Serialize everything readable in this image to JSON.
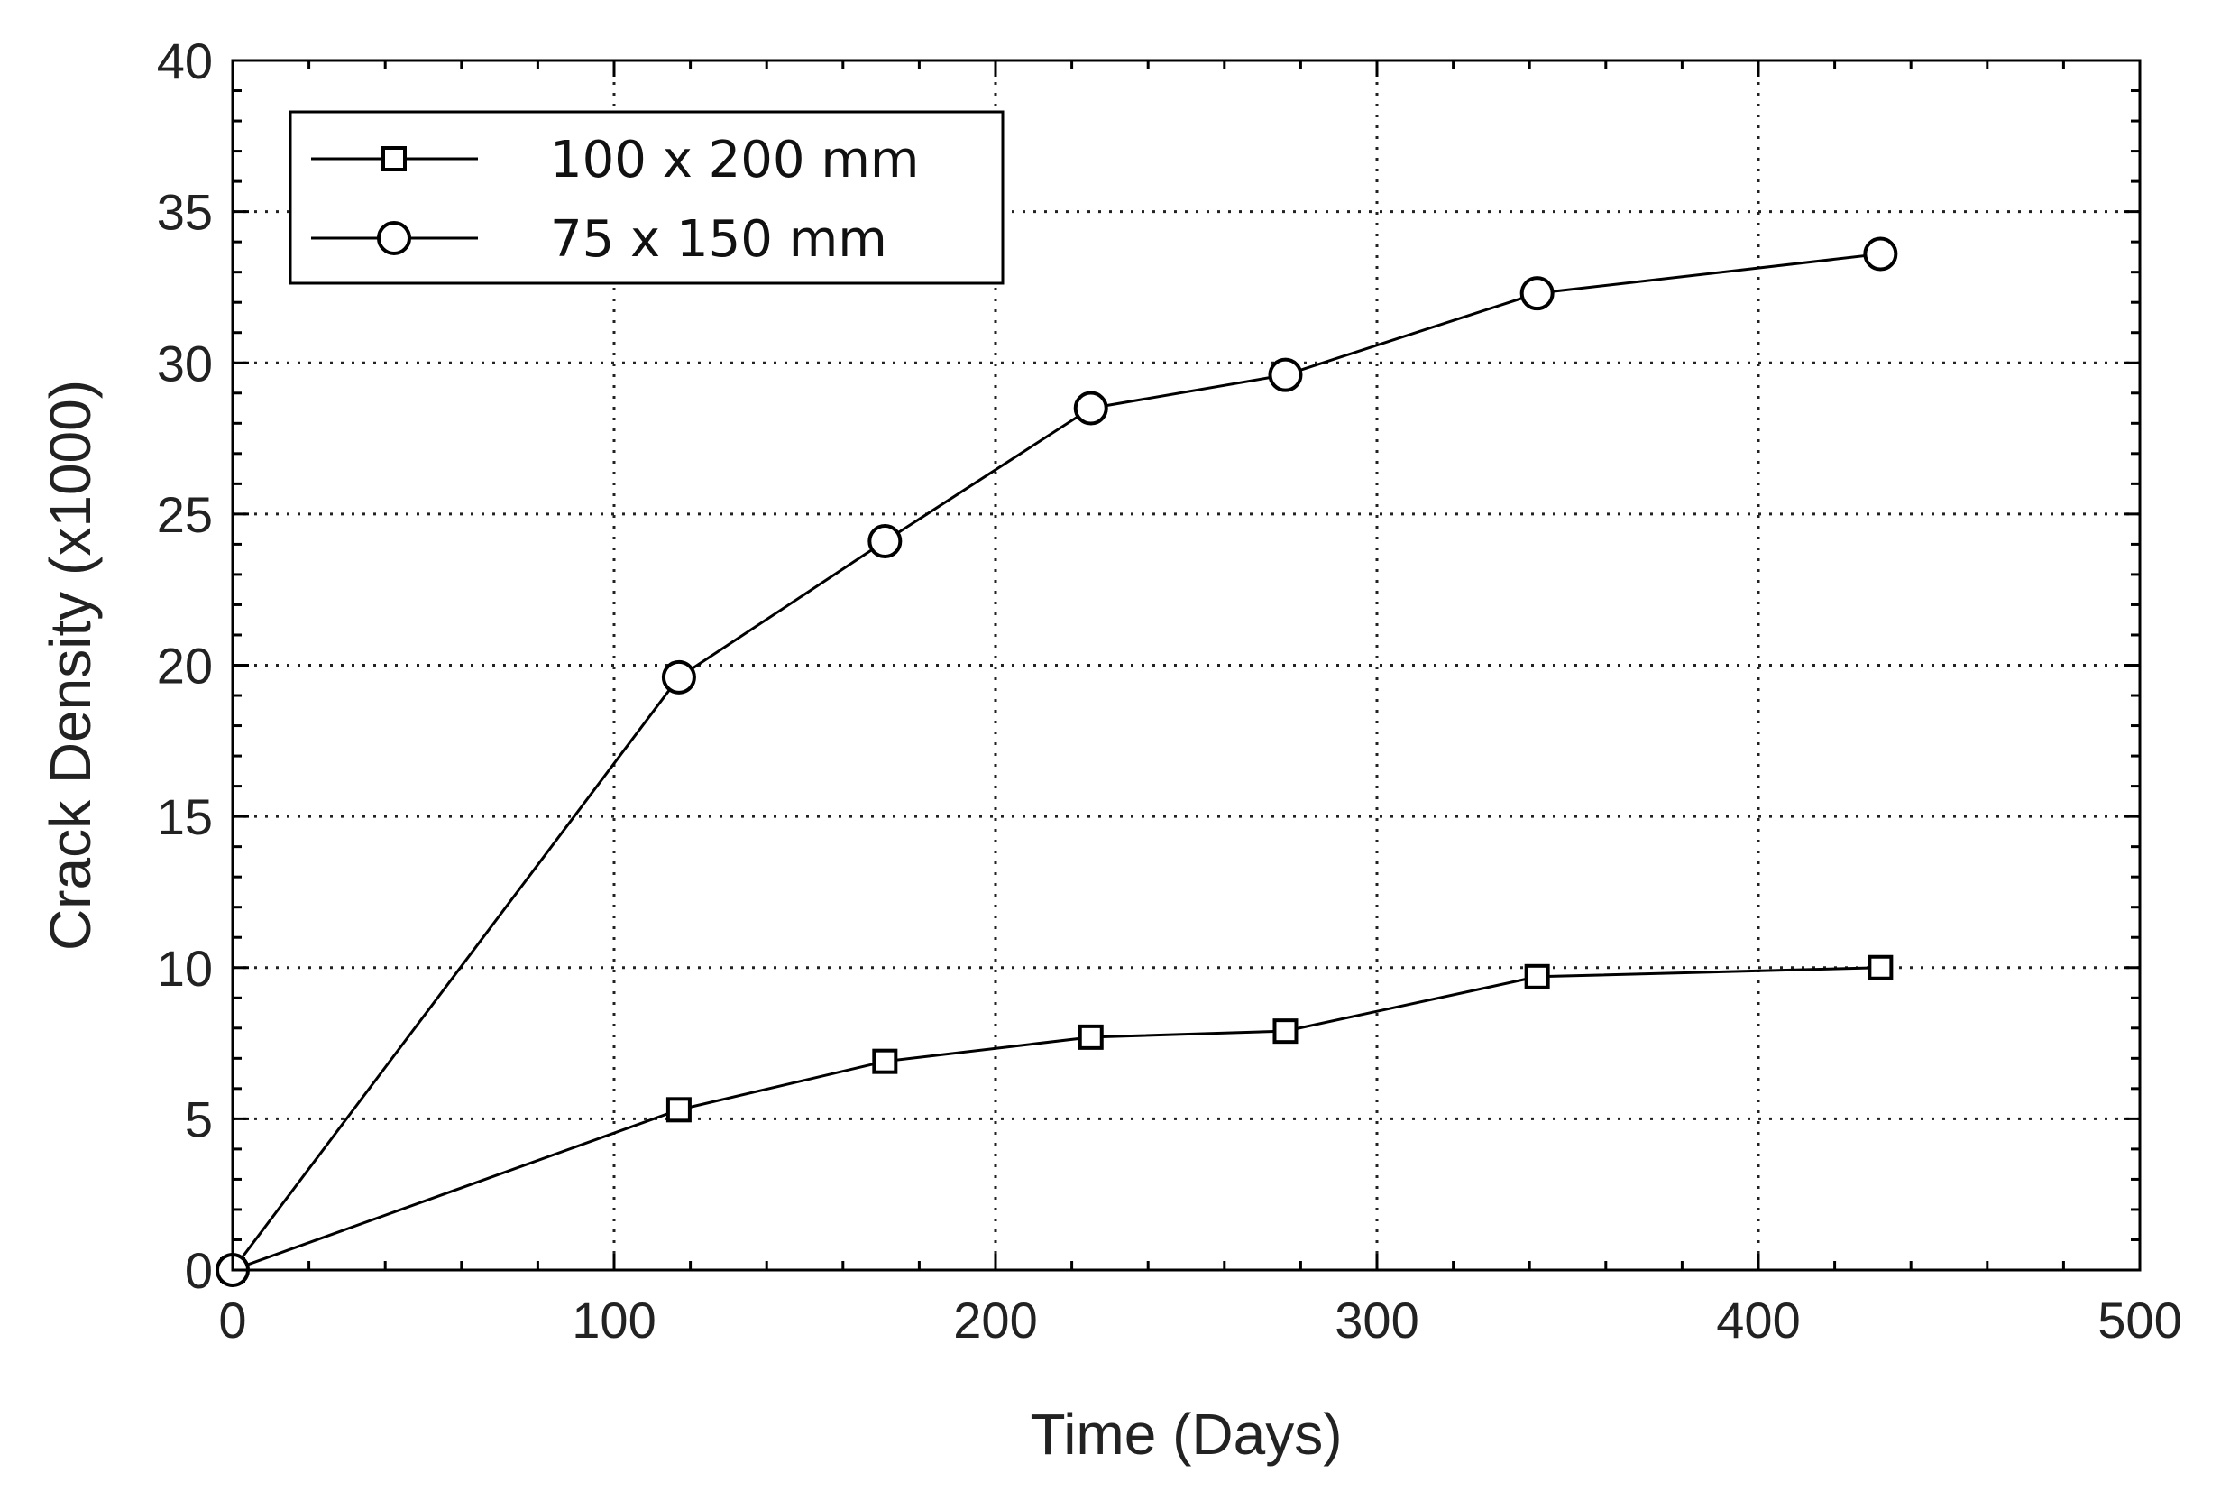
{
  "chart_data": {
    "type": "line",
    "xlabel": "Time (Days)",
    "ylabel": "Crack Density (x1000)",
    "xlim": [
      0,
      500
    ],
    "ylim": [
      0,
      40
    ],
    "xticks": [
      0,
      100,
      200,
      300,
      400,
      500
    ],
    "yticks": [
      0,
      5,
      10,
      15,
      20,
      25,
      30,
      35,
      40
    ],
    "x_tick_labels": [
      "0",
      "100",
      "200",
      "300",
      "400",
      "500"
    ],
    "y_tick_labels": [
      "0",
      "5",
      "10",
      "15",
      "20",
      "25",
      "30",
      "35",
      "40"
    ],
    "grid": true,
    "legend_position": "top-left",
    "series": [
      {
        "name": "100 x 200 mm",
        "marker": "square",
        "color": "#000000",
        "x": [
          0,
          117,
          171,
          225,
          276,
          342,
          432
        ],
        "y": [
          0,
          5.3,
          6.9,
          7.7,
          7.9,
          9.7,
          10.0
        ]
      },
      {
        "name": "75 x 150 mm",
        "marker": "circle",
        "color": "#000000",
        "x": [
          0,
          117,
          171,
          225,
          276,
          342,
          432
        ],
        "y": [
          0,
          19.6,
          24.1,
          28.5,
          29.6,
          32.3,
          33.6
        ]
      }
    ]
  }
}
